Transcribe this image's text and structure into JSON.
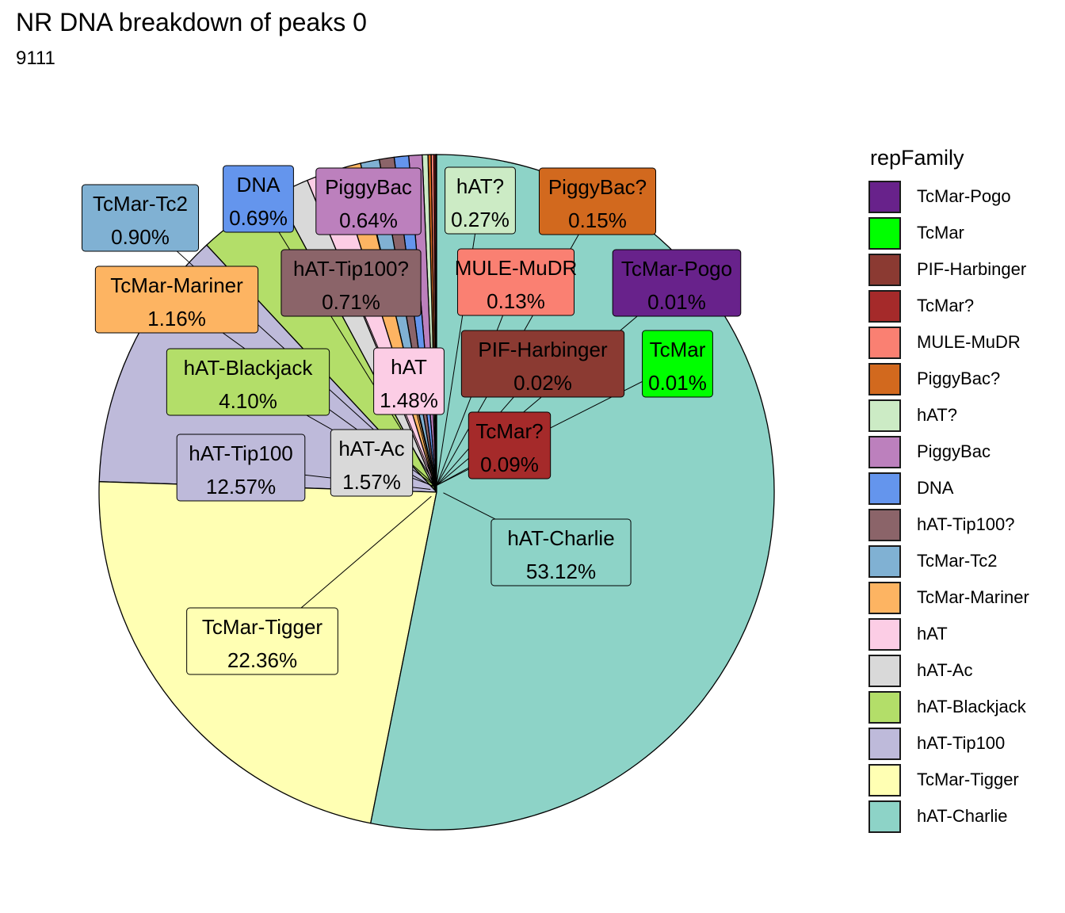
{
  "title": "NR DNA breakdown of peaks 0",
  "subtitle": "9111",
  "chart_data": {
    "type": "pie",
    "legend_title": "repFamily",
    "legend_position": "right",
    "slices": [
      {
        "name": "hAT-Charlie",
        "value": 53.12,
        "label": "53.12%",
        "color": "#8DD3C7"
      },
      {
        "name": "TcMar-Tigger",
        "value": 22.36,
        "label": "22.36%",
        "color": "#FFFFB3"
      },
      {
        "name": "hAT-Tip100",
        "value": 12.57,
        "label": "12.57%",
        "color": "#BEBADA"
      },
      {
        "name": "hAT-Blackjack",
        "value": 4.1,
        "label": "4.10%",
        "color": "#B3DE69"
      },
      {
        "name": "hAT-Ac",
        "value": 1.57,
        "label": "1.57%",
        "color": "#D9D9D9"
      },
      {
        "name": "hAT",
        "value": 1.48,
        "label": "1.48%",
        "color": "#FCCDE5"
      },
      {
        "name": "TcMar-Mariner",
        "value": 1.16,
        "label": "1.16%",
        "color": "#FDB462"
      },
      {
        "name": "TcMar-Tc2",
        "value": 0.9,
        "label": "0.90%",
        "color": "#80B1D3"
      },
      {
        "name": "hAT-Tip100?",
        "value": 0.71,
        "label": "0.71%",
        "color": "#8B6469"
      },
      {
        "name": "DNA",
        "value": 0.69,
        "label": "0.69%",
        "color": "#6495ED"
      },
      {
        "name": "PiggyBac",
        "value": 0.64,
        "label": "0.64%",
        "color": "#BC80BD"
      },
      {
        "name": "hAT?",
        "value": 0.27,
        "label": "0.27%",
        "color": "#CCEBC5"
      },
      {
        "name": "PiggyBac?",
        "value": 0.15,
        "label": "0.15%",
        "color": "#D2691E"
      },
      {
        "name": "MULE-MuDR",
        "value": 0.13,
        "label": "0.13%",
        "color": "#FA8072"
      },
      {
        "name": "TcMar?",
        "value": 0.09,
        "label": "0.09%",
        "color": "#A52A2A"
      },
      {
        "name": "PIF-Harbinger",
        "value": 0.02,
        "label": "0.02%",
        "color": "#8B3A32"
      },
      {
        "name": "TcMar",
        "value": 0.01,
        "label": "0.01%",
        "color": "#00FF00"
      },
      {
        "name": "TcMar-Pogo",
        "value": 0.01,
        "label": "0.01%",
        "color": "#68228B"
      }
    ]
  }
}
